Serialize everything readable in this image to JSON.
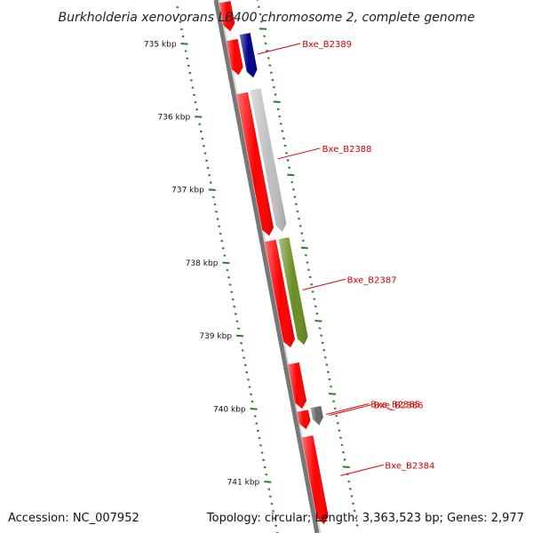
{
  "title": "Burkholderia xenovorans LB400 chromosome 2, complete genome",
  "accession": "Accession: NC_007952",
  "summary": "Topology: circular; Length: 3,363,523 bp; Genes: 2,977",
  "colors": {
    "backbone": "#777777",
    "tick": "#2e7d2e",
    "label": "#cc0000",
    "leader": "#dd0000"
  },
  "kbp_labels": [
    "735 kbp",
    "736 kbp",
    "737 kbp",
    "738 kbp",
    "739 kbp",
    "740 kbp",
    "741 kbp"
  ],
  "genes": [
    {
      "name": "",
      "strand": "inner",
      "start": 734.55,
      "end": 734.95,
      "color": "#ff0000"
    },
    {
      "name": "",
      "strand": "inner",
      "start": 735.07,
      "end": 735.55,
      "color": "#ff0000"
    },
    {
      "name": "Bxe_B2389",
      "strand": "outer",
      "start": 735.02,
      "end": 735.62,
      "color": "#00008b"
    },
    {
      "name": "",
      "strand": "inner",
      "start": 735.8,
      "end": 737.75,
      "color": "#ff0000"
    },
    {
      "name": "Bxe_B2388",
      "strand": "outer",
      "start": 735.78,
      "end": 737.73,
      "color": "#c0c0c0"
    },
    {
      "name": "",
      "strand": "inner",
      "start": 737.82,
      "end": 739.28,
      "color": "#ff0000"
    },
    {
      "name": "Bxe_B2387",
      "strand": "outer",
      "start": 737.82,
      "end": 739.28,
      "color": "#6b8e23"
    },
    {
      "name": "",
      "strand": "inner",
      "start": 739.5,
      "end": 740.12,
      "color": "#ff0000"
    },
    {
      "name": "Bxe_B2386",
      "strand": "inner",
      "start": 740.15,
      "end": 740.4,
      "color": "#ff0000"
    },
    {
      "name": "Bxe_B2385",
      "strand": "outer",
      "start": 740.13,
      "end": 740.38,
      "color": "#696969"
    },
    {
      "name": "Bxe_B2384",
      "strand": "inner",
      "start": 740.5,
      "end": 741.7,
      "color": "#ff0000"
    }
  ]
}
